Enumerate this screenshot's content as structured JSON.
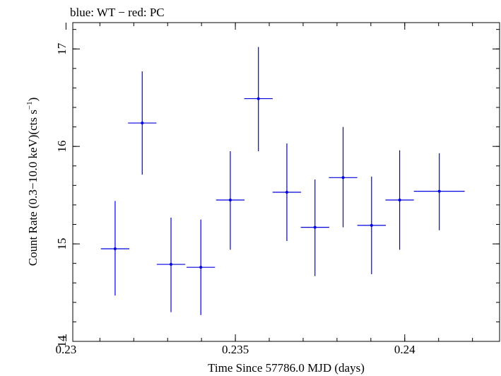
{
  "header_text": "blue: WT − red: PC",
  "chart_data": {
    "type": "scatter",
    "title": "blue: WT − red: PC",
    "xlabel": "Time Since 57786.0 MJD (days)",
    "ylabel_main": "Count Rate (0.3−10.0 keV)(cts s",
    "ylabel_sup": "−1",
    "ylabel_close": ")",
    "xlim": [
      0.2302,
      0.2428
    ],
    "ylim": [
      14.0,
      17.27
    ],
    "x_ticks": [
      {
        "value": 0.23,
        "label": "0.23"
      },
      {
        "value": 0.235,
        "label": "0.235"
      },
      {
        "value": 0.24,
        "label": "0.24"
      }
    ],
    "y_ticks": [
      {
        "value": 14,
        "label": "14"
      },
      {
        "value": 15,
        "label": "15"
      },
      {
        "value": 16,
        "label": "16"
      },
      {
        "value": 17,
        "label": "17"
      }
    ],
    "x_minor_step": 0.001,
    "y_minor_step": 0.2,
    "series": [
      {
        "name": "WT",
        "color": "#0000dd",
        "points": [
          {
            "x": 0.23145,
            "xerr": 0.00042,
            "y": 14.95,
            "yerr_low": 0.48,
            "yerr_high": 0.49
          },
          {
            "x": 0.23225,
            "xerr": 0.00042,
            "y": 16.24,
            "yerr_low": 0.53,
            "yerr_high": 0.53
          },
          {
            "x": 0.2331,
            "xerr": 0.00042,
            "y": 14.79,
            "yerr_low": 0.49,
            "yerr_high": 0.48
          },
          {
            "x": 0.23398,
            "xerr": 0.00042,
            "y": 14.76,
            "yerr_low": 0.49,
            "yerr_high": 0.49
          },
          {
            "x": 0.23485,
            "xerr": 0.00042,
            "y": 15.45,
            "yerr_low": 0.51,
            "yerr_high": 0.5
          },
          {
            "x": 0.23568,
            "xerr": 0.00042,
            "y": 16.49,
            "yerr_low": 0.54,
            "yerr_high": 0.53
          },
          {
            "x": 0.23652,
            "xerr": 0.00042,
            "y": 15.53,
            "yerr_low": 0.5,
            "yerr_high": 0.5
          },
          {
            "x": 0.23735,
            "xerr": 0.00042,
            "y": 15.17,
            "yerr_low": 0.5,
            "yerr_high": 0.49
          },
          {
            "x": 0.23818,
            "xerr": 0.00042,
            "y": 15.68,
            "yerr_low": 0.51,
            "yerr_high": 0.52
          },
          {
            "x": 0.23902,
            "xerr": 0.00042,
            "y": 15.19,
            "yerr_low": 0.5,
            "yerr_high": 0.5
          },
          {
            "x": 0.23985,
            "xerr": 0.00042,
            "y": 15.45,
            "yerr_low": 0.51,
            "yerr_high": 0.51
          },
          {
            "x": 0.24102,
            "xerr": 0.00075,
            "y": 15.54,
            "yerr_low": 0.4,
            "yerr_high": 0.39
          }
        ]
      }
    ]
  }
}
